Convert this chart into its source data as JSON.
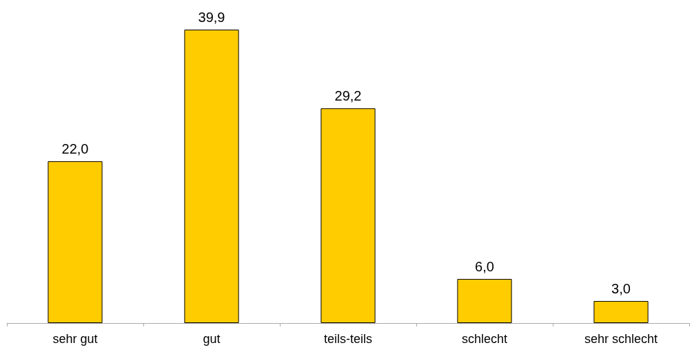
{
  "chart_data": {
    "type": "bar",
    "categories": [
      "sehr gut",
      "gut",
      "teils-teils",
      "schlecht",
      "sehr schlecht"
    ],
    "values": [
      22.0,
      39.9,
      29.2,
      6.0,
      3.0
    ],
    "value_labels": [
      "22,0",
      "39,9",
      "29,2",
      "6,0",
      "3,0"
    ],
    "color": "#ffcc00"
  }
}
